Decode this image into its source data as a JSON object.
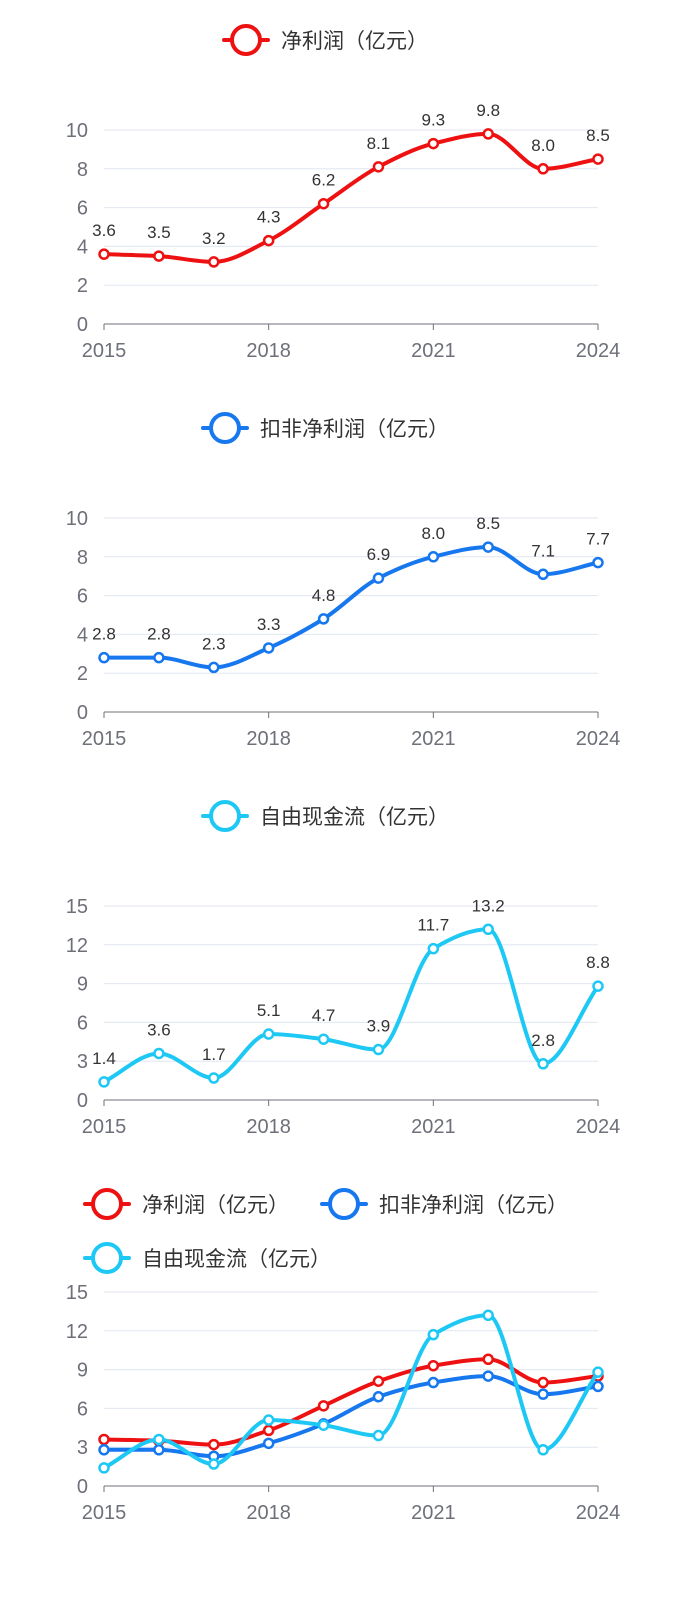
{
  "chart_data": [
    {
      "type": "line",
      "title": "",
      "categories": [
        "2015",
        "2016",
        "2017",
        "2018",
        "2019",
        "2020",
        "2021",
        "2022",
        "2023",
        "2024"
      ],
      "xtick_labels": [
        "2015",
        "2018",
        "2021",
        "2024"
      ],
      "ylim": [
        0,
        10
      ],
      "yticks": [
        0,
        2,
        4,
        6,
        8,
        10
      ],
      "show_labels": true,
      "series": [
        {
          "name": "净利润（亿元）",
          "color": "#ee1111",
          "values": [
            3.6,
            3.5,
            3.2,
            4.3,
            6.2,
            8.1,
            9.3,
            9.8,
            8.0,
            8.5
          ],
          "value_labels": [
            "3.6",
            "3.5",
            "3.2",
            "4.3",
            "6.2",
            "8.1",
            "9.3",
            "9.8",
            "8.0",
            "8.5"
          ]
        }
      ]
    },
    {
      "type": "line",
      "title": "",
      "categories": [
        "2015",
        "2016",
        "2017",
        "2018",
        "2019",
        "2020",
        "2021",
        "2022",
        "2023",
        "2024"
      ],
      "xtick_labels": [
        "2015",
        "2018",
        "2021",
        "2024"
      ],
      "ylim": [
        0,
        10
      ],
      "yticks": [
        0,
        2,
        4,
        6,
        8,
        10
      ],
      "show_labels": true,
      "series": [
        {
          "name": "扣非净利润（亿元）",
          "color": "#1677ee",
          "values": [
            2.8,
            2.8,
            2.3,
            3.3,
            4.8,
            6.9,
            8.0,
            8.5,
            7.1,
            7.7
          ],
          "value_labels": [
            "2.8",
            "2.8",
            "2.3",
            "3.3",
            "4.8",
            "6.9",
            "8.0",
            "8.5",
            "7.1",
            "7.7"
          ]
        }
      ]
    },
    {
      "type": "line",
      "title": "",
      "categories": [
        "2015",
        "2016",
        "2017",
        "2018",
        "2019",
        "2020",
        "2021",
        "2022",
        "2023",
        "2024"
      ],
      "xtick_labels": [
        "2015",
        "2018",
        "2021",
        "2024"
      ],
      "ylim": [
        0,
        15
      ],
      "yticks": [
        0,
        3,
        6,
        9,
        12,
        15
      ],
      "show_labels": true,
      "series": [
        {
          "name": "自由现金流（亿元）",
          "color": "#1ec8f5",
          "values": [
            1.4,
            3.6,
            1.7,
            5.1,
            4.7,
            3.9,
            11.7,
            13.2,
            2.8,
            8.8
          ],
          "value_labels": [
            "1.4",
            "3.6",
            "1.7",
            "5.1",
            "4.7",
            "3.9",
            "11.7",
            "13.2",
            "2.8",
            "8.8"
          ]
        }
      ]
    },
    {
      "type": "line",
      "title": "",
      "categories": [
        "2015",
        "2016",
        "2017",
        "2018",
        "2019",
        "2020",
        "2021",
        "2022",
        "2023",
        "2024"
      ],
      "xtick_labels": [
        "2015",
        "2018",
        "2021",
        "2024"
      ],
      "ylim": [
        0,
        15
      ],
      "yticks": [
        0,
        3,
        6,
        9,
        12,
        15
      ],
      "show_labels": false,
      "series": [
        {
          "name": "净利润（亿元）",
          "color": "#ee1111",
          "values": [
            3.6,
            3.5,
            3.2,
            4.3,
            6.2,
            8.1,
            9.3,
            9.8,
            8.0,
            8.5
          ]
        },
        {
          "name": "扣非净利润（亿元）",
          "color": "#1677ee",
          "values": [
            2.8,
            2.8,
            2.3,
            3.3,
            4.8,
            6.9,
            8.0,
            8.5,
            7.1,
            7.7
          ]
        },
        {
          "name": "自由现金流（亿元）",
          "color": "#1ec8f5",
          "values": [
            1.4,
            3.6,
            1.7,
            5.1,
            4.7,
            3.9,
            11.7,
            13.2,
            2.8,
            8.8
          ]
        }
      ]
    }
  ]
}
